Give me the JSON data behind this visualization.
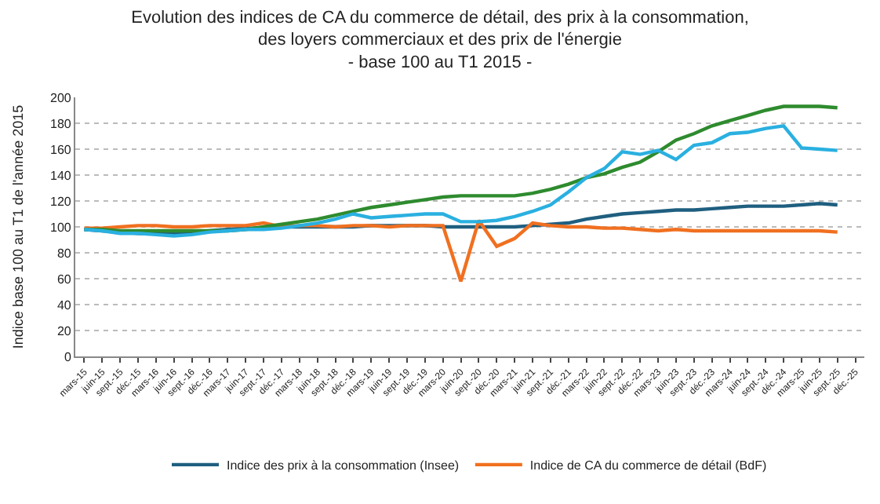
{
  "chart_data": {
    "type": "line",
    "title": "Evolution des indices de CA du commerce de détail, des prix à la consommation,\ndes loyers commerciaux et des prix de l'énergie",
    "subtitle": "- base 100 au T1 2015 -",
    "ylabel": "Indice base 100 au T1 de l'année 2015",
    "categories": [
      "mars-15",
      "juin-15",
      "sept.-15",
      "déc.-15",
      "mars-16",
      "juin-16",
      "sept.-16",
      "déc.-16",
      "mars-17",
      "juin-17",
      "sept.-17",
      "déc.-17",
      "mars-18",
      "juin-18",
      "sept.-18",
      "déc.-18",
      "mars-19",
      "juin-19",
      "sept.-19",
      "déc.-19",
      "mars-20",
      "juin-20",
      "sept.-20",
      "déc.-20",
      "mars-21",
      "juin-21",
      "sept.-21",
      "déc.-21",
      "mars-22",
      "juin-22",
      "sept.-22",
      "déc.-22",
      "mars-23",
      "juin-23",
      "sept.-23",
      "déc.-23",
      "mars-24",
      "juin-24",
      "sept.-24",
      "déc.-24",
      "mars-25",
      "juin-25",
      "sept.-25",
      "déc.-25"
    ],
    "series": [
      {
        "name": "Indice des prix à la consommation (Insee)",
        "color": "#1f5f80",
        "values": [
          98,
          97,
          96,
          95,
          95,
          95,
          96,
          97,
          98,
          99,
          99,
          100,
          100,
          100,
          100,
          100,
          101,
          101,
          101,
          101,
          100,
          100,
          100,
          100,
          100,
          101,
          102,
          103,
          106,
          108,
          110,
          111,
          112,
          113,
          113,
          114,
          115,
          116,
          116,
          116,
          117,
          118,
          117,
          null
        ]
      },
      {
        "name": "Indice de CA du commerce de détail (BdF)",
        "color": "#f07020",
        "values": [
          99,
          99,
          100,
          101,
          101,
          100,
          100,
          101,
          101,
          101,
          103,
          100,
          101,
          101,
          100,
          101,
          101,
          100,
          101,
          101,
          101,
          58,
          105,
          85,
          91,
          103,
          101,
          100,
          100,
          99,
          99,
          98,
          97,
          98,
          97,
          97,
          97,
          97,
          97,
          97,
          97,
          97,
          96,
          null
        ]
      },
      {
        "color": "#2e8b2e",
        "values": [
          98,
          98,
          97,
          97,
          97,
          97,
          97,
          97,
          97,
          98,
          100,
          102,
          104,
          106,
          109,
          112,
          115,
          117,
          119,
          121,
          123,
          124,
          124,
          124,
          124,
          126,
          129,
          133,
          138,
          141,
          146,
          150,
          158,
          167,
          172,
          178,
          182,
          186,
          190,
          193,
          193,
          193,
          192,
          null
        ]
      },
      {
        "color": "#2ab0e0",
        "values": [
          98,
          97,
          95,
          95,
          94,
          93,
          94,
          96,
          97,
          98,
          98,
          99,
          101,
          103,
          106,
          110,
          107,
          108,
          109,
          110,
          110,
          104,
          104,
          105,
          108,
          112,
          117,
          127,
          138,
          145,
          158,
          156,
          159,
          152,
          163,
          165,
          172,
          173,
          176,
          178,
          161,
          160,
          159,
          null
        ]
      }
    ],
    "ylim": [
      0,
      200
    ],
    "yticks": [
      0,
      20,
      40,
      60,
      80,
      100,
      120,
      140,
      160,
      180,
      200
    ],
    "grid": "y",
    "legend": "bottom",
    "marker": "none",
    "line_style": "solid"
  }
}
